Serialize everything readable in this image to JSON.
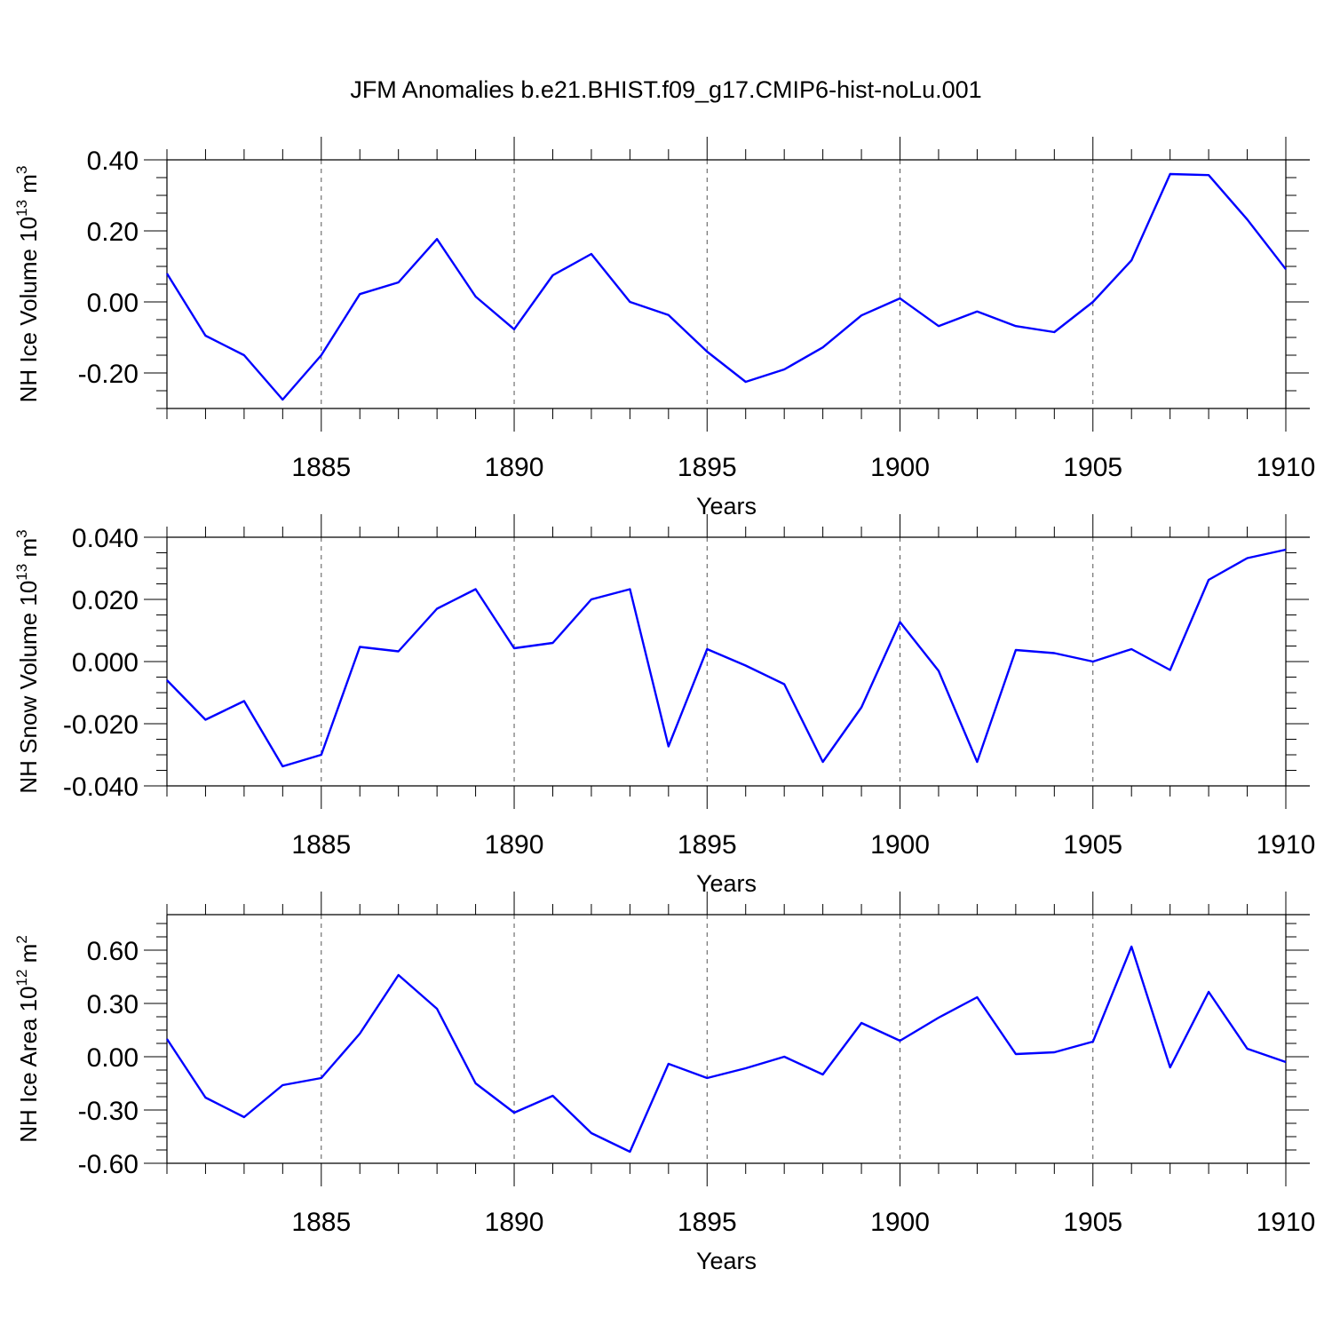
{
  "title": "JFM Anomalies b.e21.BHIST.f09_g17.CMIP6-hist-noLu.001",
  "colors": {
    "line": "#0000ff",
    "axis": "#000000",
    "grid": "#555555"
  },
  "chart_data": [
    {
      "type": "line",
      "xlabel": "Years",
      "ylabel": "NH Ice Volume 10",
      "ylabel_exp": "13",
      "ylabel_unit": " m",
      "ylabel_unit_exp": "3",
      "xlim": [
        1881,
        1910
      ],
      "ylim": [
        -0.3,
        0.4
      ],
      "yticks": [
        -0.2,
        0.0,
        0.2,
        0.4
      ],
      "yticklabels": [
        "-0.20",
        "0.00",
        "0.20",
        "0.40"
      ],
      "xticks": [
        1885,
        1890,
        1895,
        1900,
        1905,
        1910
      ],
      "xticklabels": [
        "1885",
        "1890",
        "1895",
        "1900",
        "1905",
        "1910"
      ],
      "grid": "vertical-dashed",
      "x": [
        1881,
        1882,
        1883,
        1884,
        1885,
        1886,
        1887,
        1888,
        1889,
        1890,
        1891,
        1892,
        1893,
        1894,
        1895,
        1896,
        1897,
        1898,
        1899,
        1900,
        1901,
        1902,
        1903,
        1904,
        1905,
        1906,
        1907,
        1908,
        1909,
        1910
      ],
      "values": [
        0.08,
        -0.095,
        -0.15,
        -0.275,
        -0.15,
        0.022,
        0.055,
        0.177,
        0.015,
        -0.077,
        0.075,
        0.135,
        0.0,
        -0.037,
        -0.14,
        -0.225,
        -0.19,
        -0.128,
        -0.038,
        0.01,
        -0.068,
        -0.027,
        -0.068,
        -0.085,
        0.0,
        0.117,
        0.36,
        0.357,
        0.232,
        0.092
      ]
    },
    {
      "type": "line",
      "xlabel": "Years",
      "ylabel": "NH Snow Volume 10",
      "ylabel_exp": "13",
      "ylabel_unit": " m",
      "ylabel_unit_exp": "3",
      "xlim": [
        1881,
        1910
      ],
      "ylim": [
        -0.04,
        0.04
      ],
      "yticks": [
        -0.04,
        -0.02,
        0.0,
        0.02,
        0.04
      ],
      "yticklabels": [
        "-0.040",
        "-0.020",
        "0.000",
        "0.020",
        "0.040"
      ],
      "xticks": [
        1885,
        1890,
        1895,
        1900,
        1905,
        1910
      ],
      "xticklabels": [
        "1885",
        "1890",
        "1895",
        "1900",
        "1905",
        "1910"
      ],
      "grid": "vertical-dashed",
      "x": [
        1881,
        1882,
        1883,
        1884,
        1885,
        1886,
        1887,
        1888,
        1889,
        1890,
        1891,
        1892,
        1893,
        1894,
        1895,
        1896,
        1897,
        1898,
        1899,
        1900,
        1901,
        1902,
        1903,
        1904,
        1905,
        1906,
        1907,
        1908,
        1909,
        1910
      ],
      "values": [
        -0.006,
        -0.0187,
        -0.0127,
        -0.0337,
        -0.03,
        0.0047,
        0.0033,
        0.017,
        0.0233,
        0.0043,
        0.006,
        0.02,
        0.0233,
        -0.0273,
        0.004,
        -0.0013,
        -0.0073,
        -0.0323,
        -0.0147,
        0.0127,
        -0.003,
        -0.0323,
        0.0037,
        0.0027,
        0.0,
        0.004,
        -0.0027,
        0.0263,
        0.0333,
        0.036
      ]
    },
    {
      "type": "line",
      "xlabel": "Years",
      "ylabel": "NH Ice Area 10",
      "ylabel_exp": "12",
      "ylabel_unit": " m",
      "ylabel_unit_exp": "2",
      "xlim": [
        1881,
        1910
      ],
      "ylim": [
        -0.6,
        0.8
      ],
      "yticks": [
        -0.6,
        -0.3,
        0.0,
        0.3,
        0.6
      ],
      "yticklabels": [
        "-0.60",
        "-0.30",
        "0.00",
        "0.30",
        "0.60"
      ],
      "xticks": [
        1885,
        1890,
        1895,
        1900,
        1905,
        1910
      ],
      "xticklabels": [
        "1885",
        "1890",
        "1895",
        "1900",
        "1905",
        "1910"
      ],
      "grid": "vertical-dashed",
      "x": [
        1881,
        1882,
        1883,
        1884,
        1885,
        1886,
        1887,
        1888,
        1889,
        1890,
        1891,
        1892,
        1893,
        1894,
        1895,
        1896,
        1897,
        1898,
        1899,
        1900,
        1901,
        1902,
        1903,
        1904,
        1905,
        1906,
        1907,
        1908,
        1909,
        1910
      ],
      "values": [
        0.1,
        -0.23,
        -0.34,
        -0.16,
        -0.12,
        0.13,
        0.46,
        0.27,
        -0.15,
        -0.315,
        -0.22,
        -0.43,
        -0.535,
        -0.04,
        -0.12,
        -0.065,
        0.0,
        -0.1,
        0.19,
        0.09,
        0.22,
        0.335,
        0.015,
        0.025,
        0.085,
        0.62,
        -0.06,
        0.365,
        0.045,
        -0.03
      ]
    }
  ]
}
